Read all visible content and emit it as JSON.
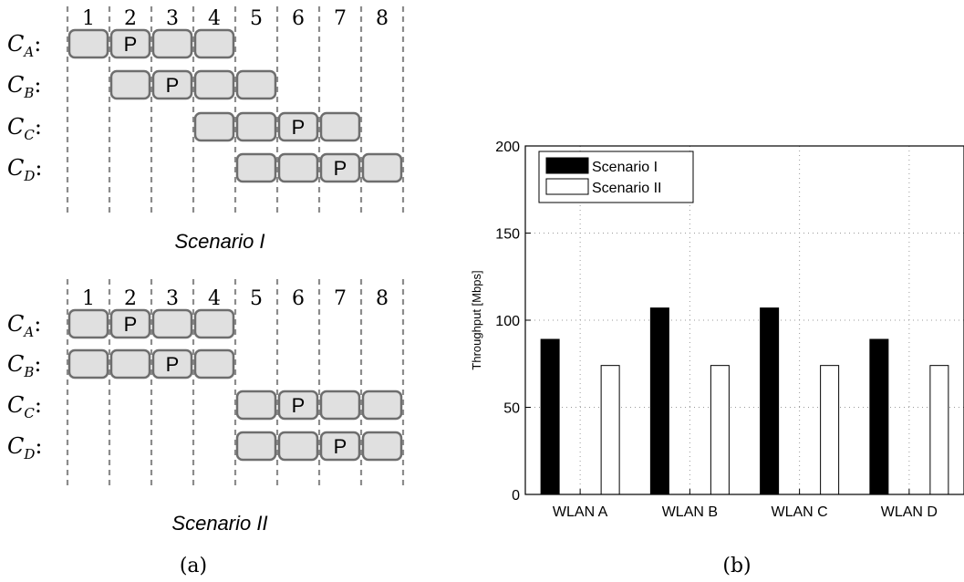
{
  "panel_a": {
    "caption": "(a)",
    "slots": [
      "1",
      "2",
      "3",
      "4",
      "5",
      "6",
      "7",
      "8"
    ],
    "primary_label": "P",
    "row_prefix": "C",
    "row_suffix": ":",
    "cell_color": "#e0e0e0",
    "cell_border": "#6e6e6e",
    "scenarios": [
      {
        "title": "Scenario I",
        "rows": [
          {
            "sub": "A",
            "channels": [
              1,
              2,
              3,
              4
            ],
            "primary": 2
          },
          {
            "sub": "B",
            "channels": [
              2,
              3,
              4,
              5
            ],
            "primary": 3
          },
          {
            "sub": "C",
            "channels": [
              4,
              5,
              6,
              7
            ],
            "primary": 6
          },
          {
            "sub": "D",
            "channels": [
              5,
              6,
              7,
              8
            ],
            "primary": 7
          }
        ]
      },
      {
        "title": "Scenario II",
        "rows": [
          {
            "sub": "A",
            "channels": [
              1,
              2,
              3,
              4
            ],
            "primary": 2
          },
          {
            "sub": "B",
            "channels": [
              1,
              2,
              3,
              4
            ],
            "primary": 3
          },
          {
            "sub": "C",
            "channels": [
              5,
              6,
              7,
              8
            ],
            "primary": 6
          },
          {
            "sub": "D",
            "channels": [
              5,
              6,
              7,
              8
            ],
            "primary": 7
          }
        ]
      }
    ]
  },
  "panel_b": {
    "caption": "(b)",
    "chart_data": {
      "type": "bar",
      "categories": [
        "WLAN A",
        "WLAN B",
        "WLAN C",
        "WLAN D"
      ],
      "series": [
        {
          "name": "Scenario I",
          "values": [
            89,
            107,
            107,
            89
          ],
          "color": "#000000"
        },
        {
          "name": "Scenario II",
          "values": [
            74,
            74,
            74,
            74
          ],
          "color": "#ffffff"
        }
      ],
      "ylabel": "Throughput [Mbps]",
      "xlabel": "",
      "ylim": [
        0,
        200
      ],
      "yticks": [
        0,
        50,
        100,
        150,
        200
      ],
      "grid": true,
      "legend": "top-left"
    }
  }
}
